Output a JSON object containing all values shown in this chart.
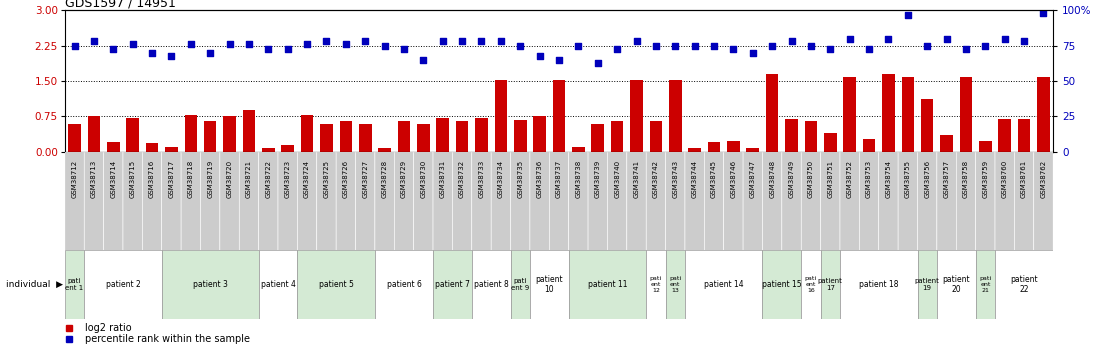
{
  "title": "GDS1597 / 14951",
  "samples": [
    "GSM38712",
    "GSM38713",
    "GSM38714",
    "GSM38715",
    "GSM38716",
    "GSM38717",
    "GSM38718",
    "GSM38719",
    "GSM38720",
    "GSM38721",
    "GSM38722",
    "GSM38723",
    "GSM38724",
    "GSM38725",
    "GSM38726",
    "GSM38727",
    "GSM38728",
    "GSM38729",
    "GSM38730",
    "GSM38731",
    "GSM38732",
    "GSM38733",
    "GSM38734",
    "GSM38735",
    "GSM38736",
    "GSM38737",
    "GSM38738",
    "GSM38739",
    "GSM38740",
    "GSM38741",
    "GSM38742",
    "GSM38743",
    "GSM38744",
    "GSM38745",
    "GSM38746",
    "GSM38747",
    "GSM38748",
    "GSM38749",
    "GSM38750",
    "GSM38751",
    "GSM38752",
    "GSM38753",
    "GSM38754",
    "GSM38755",
    "GSM38756",
    "GSM38757",
    "GSM38758",
    "GSM38759",
    "GSM38760",
    "GSM38761",
    "GSM38762"
  ],
  "log2_ratio": [
    0.6,
    0.75,
    0.2,
    0.72,
    0.18,
    0.1,
    0.78,
    0.65,
    0.75,
    0.88,
    0.08,
    0.15,
    0.78,
    0.6,
    0.65,
    0.6,
    0.08,
    0.65,
    0.6,
    0.72,
    0.65,
    0.72,
    1.52,
    0.68,
    0.75,
    1.52,
    0.1,
    0.6,
    0.65,
    1.52,
    0.65,
    1.52,
    0.08,
    0.2,
    0.22,
    0.08,
    1.65,
    0.7,
    0.65,
    0.4,
    1.58,
    0.28,
    1.65,
    1.58,
    1.12,
    0.35,
    1.58,
    0.22,
    0.7,
    0.7,
    1.58
  ],
  "percentile": [
    75,
    78,
    73,
    76,
    70,
    68,
    76,
    70,
    76,
    76,
    73,
    73,
    76,
    78,
    76,
    78,
    75,
    73,
    65,
    78,
    78,
    78,
    78,
    75,
    68,
    65,
    75,
    63,
    73,
    78,
    75,
    75,
    75,
    75,
    73,
    70,
    75,
    78,
    75,
    73,
    80,
    73,
    80,
    97,
    75,
    80,
    73,
    75,
    80,
    78,
    98
  ],
  "patients": [
    {
      "label": "pati\nent 1",
      "start": 0,
      "end": 1,
      "color": "#d4ead4"
    },
    {
      "label": "patient 2",
      "start": 1,
      "end": 5,
      "color": "#ffffff"
    },
    {
      "label": "patient 3",
      "start": 5,
      "end": 10,
      "color": "#d4ead4"
    },
    {
      "label": "patient 4",
      "start": 10,
      "end": 12,
      "color": "#ffffff"
    },
    {
      "label": "patient 5",
      "start": 12,
      "end": 16,
      "color": "#d4ead4"
    },
    {
      "label": "patient 6",
      "start": 16,
      "end": 19,
      "color": "#ffffff"
    },
    {
      "label": "patient 7",
      "start": 19,
      "end": 21,
      "color": "#d4ead4"
    },
    {
      "label": "patient 8",
      "start": 21,
      "end": 23,
      "color": "#ffffff"
    },
    {
      "label": "pati\nent 9",
      "start": 23,
      "end": 24,
      "color": "#d4ead4"
    },
    {
      "label": "patient\n10",
      "start": 24,
      "end": 26,
      "color": "#ffffff"
    },
    {
      "label": "patient 11",
      "start": 26,
      "end": 30,
      "color": "#d4ead4"
    },
    {
      "label": "pati\nent\n12",
      "start": 30,
      "end": 31,
      "color": "#ffffff"
    },
    {
      "label": "pati\nent\n13",
      "start": 31,
      "end": 32,
      "color": "#d4ead4"
    },
    {
      "label": "patient 14",
      "start": 32,
      "end": 36,
      "color": "#ffffff"
    },
    {
      "label": "patient 15",
      "start": 36,
      "end": 38,
      "color": "#d4ead4"
    },
    {
      "label": "pati\nent\n16",
      "start": 38,
      "end": 39,
      "color": "#ffffff"
    },
    {
      "label": "patient\n17",
      "start": 39,
      "end": 40,
      "color": "#d4ead4"
    },
    {
      "label": "patient 18",
      "start": 40,
      "end": 44,
      "color": "#ffffff"
    },
    {
      "label": "patient\n19",
      "start": 44,
      "end": 45,
      "color": "#d4ead4"
    },
    {
      "label": "patient\n20",
      "start": 45,
      "end": 47,
      "color": "#ffffff"
    },
    {
      "label": "pati\nent\n21",
      "start": 47,
      "end": 48,
      "color": "#d4ead4"
    },
    {
      "label": "patient\n22",
      "start": 48,
      "end": 51,
      "color": "#ffffff"
    }
  ],
  "bar_color": "#cc0000",
  "dot_color": "#0000bb",
  "left_yticks": [
    0,
    0.75,
    1.5,
    2.25,
    3.0
  ],
  "left_ylim": [
    0,
    3.0
  ],
  "right_ytick_vals": [
    0,
    25,
    50,
    75,
    100
  ],
  "right_ytick_labels": [
    "0",
    "25",
    "50",
    "75",
    "100%"
  ],
  "right_ylim": [
    0,
    100
  ],
  "hlines": [
    0.75,
    1.5,
    2.25
  ],
  "tick_label_color_left": "#cc0000",
  "tick_label_color_right": "#0000bb"
}
